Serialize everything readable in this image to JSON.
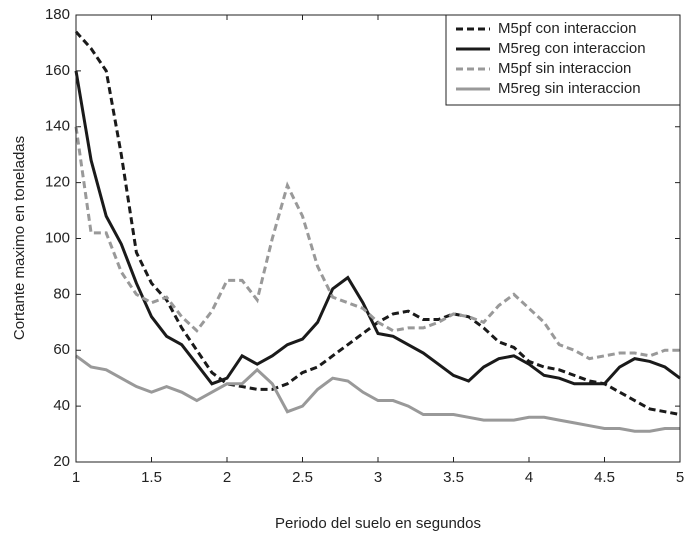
{
  "chart_data": {
    "type": "line",
    "x_label": "Periodo del suelo en segundos",
    "y_label": "Cortante maximo en toneladas",
    "x": [
      1,
      1.1,
      1.2,
      1.3,
      1.4,
      1.5,
      1.6,
      1.7,
      1.8,
      1.9,
      2,
      2.1,
      2.2,
      2.3,
      2.4,
      2.5,
      2.6,
      2.7,
      2.8,
      2.9,
      3,
      3.1,
      3.2,
      3.3,
      3.4,
      3.5,
      3.6,
      3.7,
      3.8,
      3.9,
      4,
      4.1,
      4.2,
      4.3,
      4.4,
      4.5,
      4.6,
      4.7,
      4.8,
      4.9,
      5
    ],
    "series": [
      {
        "name": "M5pf con interaccion",
        "color": "#1a1a1a",
        "dashed": true,
        "values": [
          174,
          168,
          160,
          130,
          95,
          84,
          78,
          68,
          60,
          52,
          48,
          47,
          46,
          46,
          48,
          52,
          54,
          58,
          62,
          66,
          70,
          73,
          74,
          71,
          71,
          73,
          72,
          68,
          63,
          61,
          56,
          54,
          53,
          51,
          49,
          48,
          45,
          42,
          39,
          38,
          37
        ]
      },
      {
        "name": "M5reg con interaccion",
        "color": "#1a1a1a",
        "dashed": false,
        "values": [
          160,
          128,
          108,
          98,
          84,
          72,
          65,
          62,
          55,
          48,
          50,
          58,
          55,
          58,
          62,
          64,
          70,
          82,
          86,
          77,
          66,
          65,
          62,
          59,
          55,
          51,
          49,
          54,
          57,
          58,
          55,
          51,
          50,
          48,
          48,
          48,
          54,
          57,
          56,
          54,
          50
        ]
      },
      {
        "name": "M5pf sin interaccion",
        "color": "#999999",
        "dashed": true,
        "values": [
          140,
          102,
          102,
          88,
          80,
          77,
          79,
          72,
          67,
          74,
          85,
          85,
          78,
          100,
          119,
          108,
          90,
          79,
          77,
          75,
          70,
          67,
          68,
          68,
          70,
          73,
          72,
          70,
          76,
          80,
          75,
          70,
          62,
          60,
          57,
          58,
          59,
          59,
          58,
          60,
          60
        ]
      },
      {
        "name": "M5reg sin interaccion",
        "color": "#999999",
        "dashed": false,
        "values": [
          58,
          54,
          53,
          50,
          47,
          45,
          47,
          45,
          42,
          45,
          48,
          48,
          53,
          48,
          38,
          40,
          46,
          50,
          49,
          45,
          42,
          42,
          40,
          37,
          37,
          37,
          36,
          35,
          35,
          35,
          36,
          36,
          35,
          34,
          33,
          32,
          32,
          31,
          31,
          32,
          32
        ]
      }
    ],
    "xlim": [
      1,
      5
    ],
    "xticks": [
      1,
      1.5,
      2,
      2.5,
      3,
      3.5,
      4,
      4.5,
      5
    ],
    "ylim": [
      20,
      180
    ],
    "yticks": [
      20,
      40,
      60,
      80,
      100,
      120,
      140,
      160,
      180
    ],
    "legend": "upper right",
    "grid": false
  }
}
